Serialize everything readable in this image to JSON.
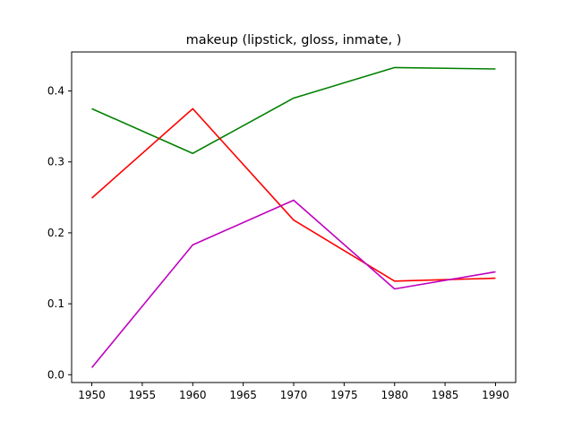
{
  "chart_data": {
    "type": "line",
    "title": "makeup (lipstick, gloss, inmate, )",
    "xlabel": "",
    "ylabel": "",
    "x": [
      1950,
      1960,
      1970,
      1980,
      1990
    ],
    "xlim": [
      1948,
      1992
    ],
    "ylim": [
      -0.011,
      0.455
    ],
    "xticks": [
      1950,
      1955,
      1960,
      1965,
      1970,
      1975,
      1980,
      1985,
      1990
    ],
    "yticks": [
      0.0,
      0.1,
      0.2,
      0.3,
      0.4
    ],
    "xtick_labels": [
      "1950",
      "1955",
      "1960",
      "1965",
      "1970",
      "1975",
      "1980",
      "1985",
      "1990"
    ],
    "ytick_labels": [
      "0.0",
      "0.1",
      "0.2",
      "0.3",
      "0.4"
    ],
    "grid": false,
    "series": [
      {
        "color": "#008000",
        "values": [
          0.375,
          0.312,
          0.39,
          0.433,
          0.431
        ]
      },
      {
        "color": "#ff0000",
        "values": [
          0.249,
          0.375,
          0.218,
          0.132,
          0.136
        ]
      },
      {
        "color": "#bf00bf",
        "values": [
          0.01,
          0.183,
          0.246,
          0.121,
          0.145
        ]
      }
    ]
  }
}
